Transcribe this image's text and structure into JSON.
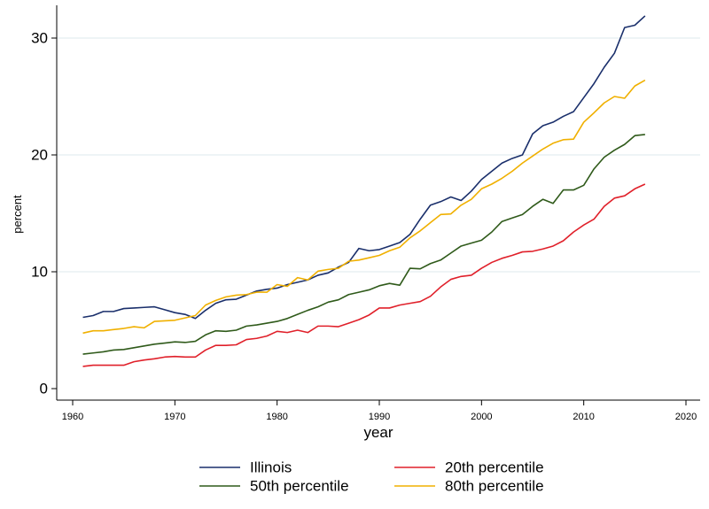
{
  "chart_data": {
    "type": "line",
    "title": "",
    "xlabel": "year",
    "ylabel": "percent",
    "xlim": [
      1960,
      2020
    ],
    "ylim": [
      0,
      32
    ],
    "x_ticks": [
      1960,
      1970,
      1980,
      1990,
      2000,
      2010,
      2020
    ],
    "y_ticks": [
      0,
      10,
      20,
      30
    ],
    "grid": true,
    "legend_position": "bottom",
    "x": [
      1961,
      1962,
      1963,
      1964,
      1965,
      1966,
      1967,
      1968,
      1969,
      1970,
      1971,
      1972,
      1973,
      1974,
      1975,
      1976,
      1977,
      1978,
      1979,
      1980,
      1981,
      1982,
      1983,
      1984,
      1985,
      1986,
      1987,
      1988,
      1989,
      1990,
      1991,
      1992,
      1993,
      1994,
      1995,
      1996,
      1997,
      1998,
      1999,
      2000,
      2001,
      2002,
      2003,
      2004,
      2005,
      2006,
      2007,
      2008,
      2009,
      2010,
      2011,
      2012,
      2013,
      2014,
      2015,
      2016
    ],
    "series": [
      {
        "name": "Illinois",
        "color": "#1a2f6b",
        "values": [
          6.1,
          6.25,
          6.6,
          6.6,
          6.85,
          6.9,
          6.95,
          7.0,
          6.75,
          6.5,
          6.35,
          6.0,
          6.7,
          7.3,
          7.6,
          7.65,
          8.0,
          8.35,
          8.5,
          8.6,
          8.9,
          9.1,
          9.3,
          9.7,
          9.9,
          10.4,
          10.8,
          12.0,
          11.8,
          11.9,
          12.2,
          12.5,
          13.2,
          14.5,
          15.7,
          16.0,
          16.4,
          16.1,
          16.9,
          17.9,
          18.6,
          19.3,
          19.7,
          20.0,
          21.8,
          22.5,
          22.8,
          23.3,
          23.7,
          24.9,
          26.1,
          27.5,
          28.7,
          30.9,
          31.1,
          31.9
        ]
      },
      {
        "name": "20th percentile",
        "color": "#e0202a",
        "values": [
          1.9,
          2.0,
          2.0,
          2.0,
          2.0,
          2.3,
          2.45,
          2.55,
          2.7,
          2.75,
          2.7,
          2.7,
          3.3,
          3.7,
          3.7,
          3.75,
          4.2,
          4.3,
          4.5,
          4.9,
          4.8,
          5.0,
          4.8,
          5.35,
          5.35,
          5.3,
          5.6,
          5.9,
          6.3,
          6.9,
          6.9,
          7.15,
          7.3,
          7.45,
          7.9,
          8.7,
          9.35,
          9.6,
          9.7,
          10.3,
          10.8,
          11.15,
          11.4,
          11.7,
          11.75,
          11.95,
          12.2,
          12.65,
          13.4,
          14.0,
          14.5,
          15.6,
          16.3,
          16.5,
          17.1,
          17.5
        ]
      },
      {
        "name": "50th percentile",
        "color": "#2f5a1a",
        "values": [
          2.95,
          3.05,
          3.15,
          3.3,
          3.35,
          3.5,
          3.65,
          3.8,
          3.9,
          4.0,
          3.95,
          4.05,
          4.6,
          4.95,
          4.9,
          5.0,
          5.35,
          5.45,
          5.6,
          5.75,
          6.0,
          6.35,
          6.7,
          7.0,
          7.4,
          7.6,
          8.05,
          8.25,
          8.45,
          8.8,
          9.0,
          8.85,
          10.3,
          10.25,
          10.7,
          11.0,
          11.6,
          12.2,
          12.45,
          12.7,
          13.4,
          14.3,
          14.6,
          14.9,
          15.6,
          16.2,
          15.85,
          17.0,
          17.0,
          17.4,
          18.8,
          19.8,
          20.4,
          20.9,
          21.65,
          21.75
        ]
      },
      {
        "name": "80th percentile",
        "color": "#f0b000",
        "values": [
          4.75,
          4.95,
          4.95,
          5.05,
          5.15,
          5.3,
          5.2,
          5.75,
          5.8,
          5.85,
          6.05,
          6.25,
          7.15,
          7.55,
          7.85,
          8.0,
          8.05,
          8.25,
          8.25,
          8.9,
          8.75,
          9.5,
          9.3,
          10.05,
          10.2,
          10.3,
          10.9,
          11.0,
          11.2,
          11.4,
          11.8,
          12.1,
          12.9,
          13.5,
          14.2,
          14.9,
          14.95,
          15.7,
          16.2,
          17.1,
          17.5,
          18.0,
          18.6,
          19.3,
          19.9,
          20.5,
          21.0,
          21.3,
          21.35,
          22.8,
          23.6,
          24.45,
          25.0,
          24.85,
          25.9,
          26.4
        ]
      }
    ]
  }
}
